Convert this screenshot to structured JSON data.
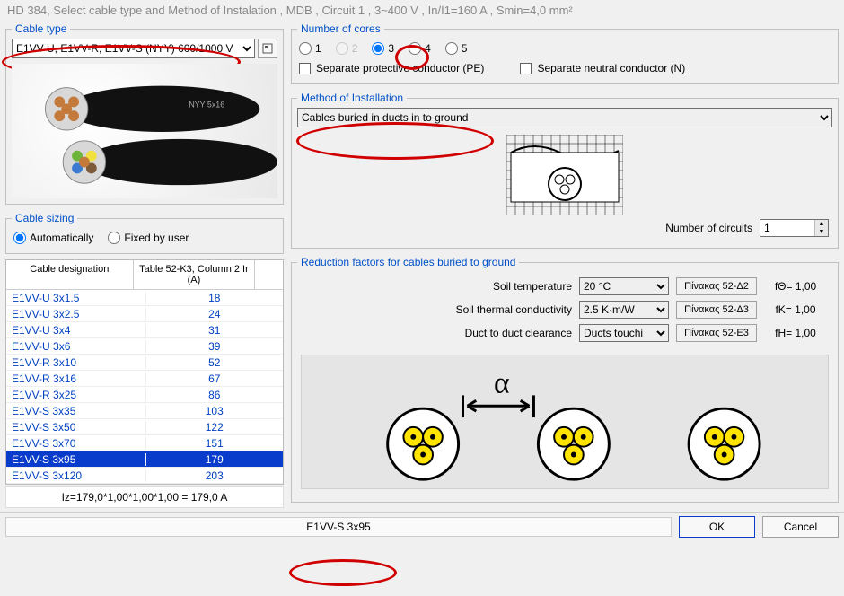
{
  "title": "HD 384, Select cable type and Method of Instalation ,  MDB , Circuit 1 , 3~400 V , In/I1=160 A , Smin=4,0 mm²",
  "cable_type": {
    "legend": "Cable type",
    "selected": "E1VV-U, E1VV-R, E1VV-S  (NYY)  600/1000 V"
  },
  "cable_sizing": {
    "legend": "Cable sizing",
    "auto_label": "Automatically",
    "fixed_label": "Fixed by user",
    "selected": "auto"
  },
  "cable_table": {
    "col1": "Cable designation",
    "col2": "Table 52-K3, Column 2 Ir (A)",
    "rows": [
      {
        "name": "E1VV-U 3x1.5",
        "ir": "18"
      },
      {
        "name": "E1VV-U 3x2.5",
        "ir": "24"
      },
      {
        "name": "E1VV-U 3x4",
        "ir": "31"
      },
      {
        "name": "E1VV-U 3x6",
        "ir": "39"
      },
      {
        "name": "E1VV-R 3x10",
        "ir": "52"
      },
      {
        "name": "E1VV-R 3x16",
        "ir": "67"
      },
      {
        "name": "E1VV-R 3x25",
        "ir": "86"
      },
      {
        "name": "E1VV-S 3x35",
        "ir": "103"
      },
      {
        "name": "E1VV-S 3x50",
        "ir": "122"
      },
      {
        "name": "E1VV-S 3x70",
        "ir": "151"
      },
      {
        "name": "E1VV-S 3x95",
        "ir": "179",
        "selected": true
      },
      {
        "name": "E1VV-S 3x120",
        "ir": "203"
      }
    ],
    "iz_line": "Iz=179,0*1,00*1,00*1,00 = 179,0 A"
  },
  "cores": {
    "legend": "Number of cores",
    "options": [
      "1",
      "2",
      "3",
      "4",
      "5"
    ],
    "selected": "3",
    "disabled_index": 1,
    "pe_label": "Separate protective conductor (PE)",
    "n_label": "Separate neutral conductor (N)"
  },
  "method": {
    "legend": "Method of Installation",
    "selected": "Cables buried in ducts  in to ground",
    "circuits_label": "Number of circuits",
    "circuits_value": "1"
  },
  "reduction": {
    "legend": "Reduction factors for cables buried to ground",
    "rows": [
      {
        "label": "Soil temperature",
        "sel": "20 °C",
        "btn": "Πίνακας 52-Δ2",
        "f": "fΘ=  1,00"
      },
      {
        "label": "Soil thermal conductivity",
        "sel": "2.5 K·m/W",
        "btn": "Πίνακας 52-Δ3",
        "f": "fK=  1,00"
      },
      {
        "label": "Duct to duct clearance",
        "sel": "Ducts touchi",
        "btn": "Πίνακας 52-E3",
        "f": "fH=  1,00"
      }
    ]
  },
  "footer": {
    "chosen": "E1VV-S 3x95",
    "ok": "OK",
    "cancel": "Cancel"
  },
  "colors": {
    "link_blue": "#0040c0",
    "sel_blue": "#0a3ccc",
    "annot_red": "#d00000",
    "core_yellow": "#ffe400"
  }
}
